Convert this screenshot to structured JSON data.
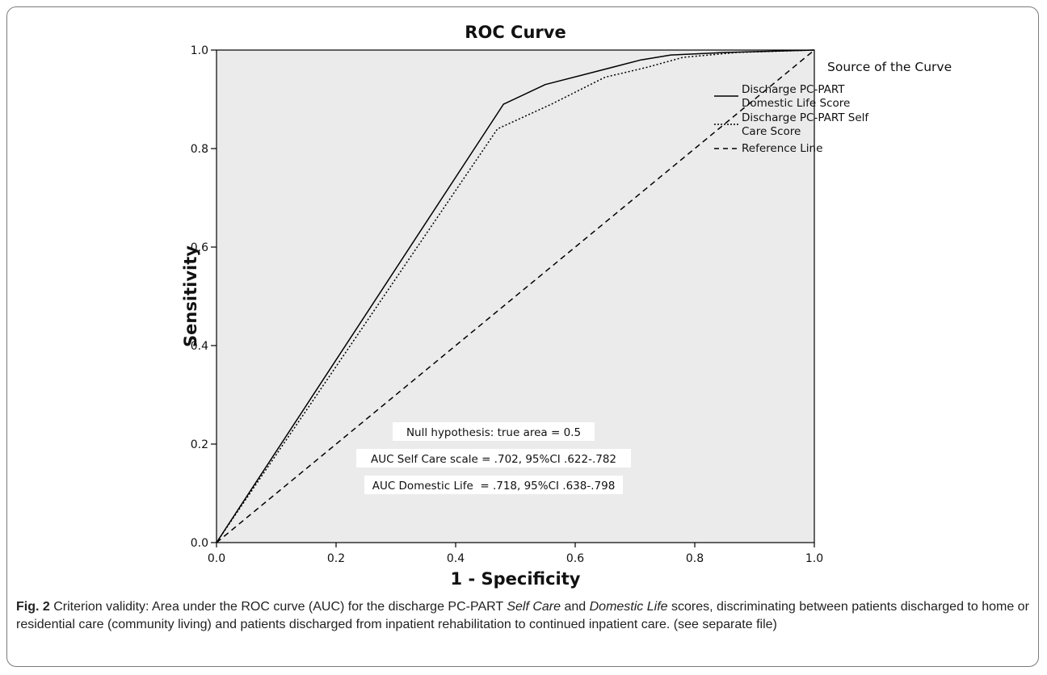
{
  "chart_data": {
    "type": "line",
    "title": "ROC Curve",
    "xlabel": "1 - Specificity",
    "ylabel": "Sensitivity",
    "xlim": [
      0,
      1
    ],
    "ylim": [
      0,
      1
    ],
    "xticks": [
      "0.0",
      "0.2",
      "0.4",
      "0.6",
      "0.8",
      "1.0"
    ],
    "yticks": [
      "0.0",
      "0.2",
      "0.4",
      "0.6",
      "0.8",
      "1.0"
    ],
    "grid": false,
    "legend": {
      "title": "Source of the Curve",
      "position": "right",
      "entries": [
        [
          "Discharge PC-PART",
          "Domestic Life Score"
        ],
        [
          "Discharge PC-PART Self",
          "Care Score"
        ],
        [
          "Reference Line"
        ]
      ]
    },
    "series": [
      {
        "name": "Discharge PC-PART Domestic Life Score",
        "style": "solid",
        "color": "#000000",
        "x": [
          0.0,
          0.48,
          0.55,
          0.63,
          0.71,
          0.76,
          0.85,
          1.0
        ],
        "y": [
          0.0,
          0.89,
          0.93,
          0.955,
          0.98,
          0.99,
          0.995,
          1.0
        ]
      },
      {
        "name": "Discharge PC-PART Self Care Score",
        "style": "dotted",
        "color": "#000000",
        "x": [
          0.0,
          0.47,
          0.56,
          0.65,
          0.72,
          0.78,
          0.87,
          1.0
        ],
        "y": [
          0.0,
          0.84,
          0.89,
          0.945,
          0.965,
          0.985,
          0.995,
          1.0
        ]
      },
      {
        "name": "Reference Line",
        "style": "dashed",
        "color": "#000000",
        "x": [
          0.0,
          1.0
        ],
        "y": [
          0.0,
          1.0
        ]
      }
    ],
    "annotations": [
      "Null hypothesis: true area = 0.5",
      "AUC Self Care scale = .702, 95%CI .622-.782",
      "AUC Domestic Life  = .718, 95%CI .638-.798"
    ],
    "plot_background": "#ebebeb"
  },
  "caption": {
    "label": "Fig. 2",
    "text_1": " Criterion validity: Area under the ROC curve (AUC) for the discharge PC-PART ",
    "em_1": "Self Care",
    "text_2": " and ",
    "em_2": "Domestic Life",
    "text_3": " scores, discriminating between patients discharged to home or residential care (community living) and patients discharged from inpatient rehabilitation to continued inpatient care. (see separate file)"
  }
}
